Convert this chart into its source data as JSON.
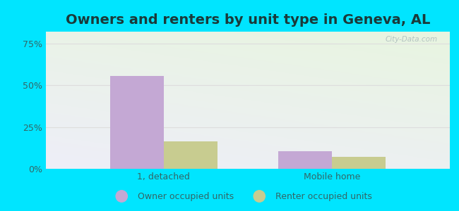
{
  "title": "Owners and renters by unit type in Geneva, AL",
  "categories": [
    "1, detached",
    "Mobile home"
  ],
  "owner_values": [
    55.5,
    10.5
  ],
  "renter_values": [
    16.5,
    7.0
  ],
  "owner_color": "#c4a8d4",
  "renter_color": "#c8cc90",
  "background_outer": "#00e5ff",
  "yticks": [
    0,
    25,
    50,
    75
  ],
  "ylim": [
    0,
    82
  ],
  "bar_width": 0.32,
  "legend_labels": [
    "Owner occupied units",
    "Renter occupied units"
  ],
  "watermark": "City-Data.com",
  "title_fontsize": 14,
  "tick_fontsize": 9,
  "legend_fontsize": 9,
  "title_color": "#1a3a3a",
  "tick_color": "#336666",
  "grid_color": "#dddddd"
}
